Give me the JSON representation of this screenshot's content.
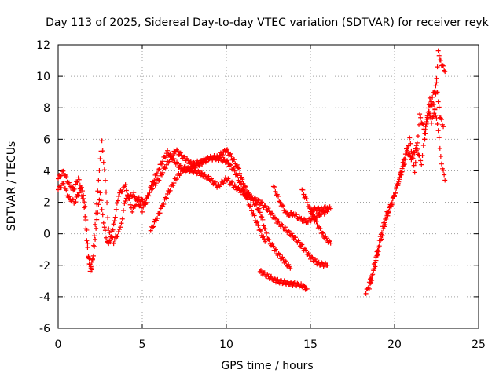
{
  "chart_data": {
    "type": "scatter",
    "title": "Day 113 of 2025, Sidereal Day-to-day VTEC variation (SDTVAR) for receiver reyk",
    "xlabel": "GPS time / hours",
    "ylabel": "SDTVAR / TECUs",
    "xlim": [
      0,
      25
    ],
    "ylim": [
      -6,
      12
    ],
    "xticks": [
      "0",
      "5",
      "10",
      "15",
      "20",
      "25"
    ],
    "yticks": [
      "-6",
      "-4",
      "-2",
      "0",
      "2",
      "4",
      "6",
      "8",
      "10",
      "12"
    ],
    "grid": true,
    "marker": "+",
    "marker_color": "#ff0000",
    "series": [
      {
        "name": "trace-1",
        "x": [
          0.0,
          0.3,
          0.6,
          0.9,
          1.2,
          1.5,
          1.7,
          1.9,
          2.1,
          2.3,
          2.5,
          2.7,
          2.9,
          3.1,
          3.3,
          3.6,
          4.0,
          4.4,
          4.8,
          5.2,
          5.6,
          6.0,
          6.5,
          7.0,
          7.5,
          8.0,
          8.5,
          9.0,
          9.5,
          10.0,
          10.5,
          11.0,
          11.5,
          12.0,
          12.3
        ],
        "y": [
          3.5,
          4.0,
          3.2,
          2.8,
          3.5,
          2.5,
          -0.5,
          -2.3,
          -1.5,
          1.0,
          2.5,
          0.8,
          -0.6,
          -0.4,
          0.5,
          2.5,
          3.0,
          1.5,
          2.2,
          2.0,
          3.2,
          4.2,
          5.2,
          4.5,
          4.0,
          4.2,
          4.5,
          4.8,
          4.8,
          4.6,
          4.0,
          2.8,
          1.5,
          0.2,
          -0.5
        ]
      },
      {
        "name": "trace-2",
        "x": [
          0.0,
          0.3,
          0.6,
          1.0,
          1.3,
          1.6,
          1.8,
          2.0,
          2.2,
          2.4,
          2.6,
          2.8,
          3.0,
          3.3,
          3.7,
          4.0,
          4.5,
          5.0,
          5.5,
          6.0,
          6.5,
          7.0,
          7.5,
          8.0,
          8.5,
          9.0,
          9.5,
          10.0,
          10.3,
          10.7,
          11.0,
          11.5,
          12.0,
          12.5,
          13.0,
          13.5,
          13.8
        ],
        "y": [
          2.8,
          3.2,
          2.3,
          2.0,
          2.8,
          1.8,
          -1.5,
          -2.2,
          0.5,
          3.5,
          5.8,
          3.5,
          0.2,
          -0.5,
          0.3,
          2.2,
          2.5,
          1.5,
          2.8,
          3.5,
          4.5,
          5.3,
          4.8,
          4.4,
          4.6,
          4.8,
          4.9,
          5.3,
          4.9,
          4.2,
          3.2,
          2.2,
          1.4,
          -0.4,
          -1.2,
          -1.8,
          -2.2
        ]
      },
      {
        "name": "trace-3",
        "x": [
          5.5,
          6.0,
          6.5,
          7.0,
          7.5,
          8.0,
          8.5,
          9.0,
          9.5,
          10.0,
          10.5,
          11.0,
          11.5,
          12.0,
          12.5,
          13.0,
          13.5,
          14.0,
          14.5,
          15.0,
          15.5,
          16.0
        ],
        "y": [
          0.2,
          1.3,
          2.5,
          3.5,
          4.2,
          4.0,
          3.8,
          3.5,
          3.0,
          3.5,
          3.0,
          2.6,
          2.3,
          2.0,
          1.5,
          0.8,
          0.3,
          -0.2,
          -0.8,
          -1.5,
          -1.9,
          -2.0
        ]
      },
      {
        "name": "trace-4",
        "x": [
          12.0,
          12.5,
          13.0,
          13.5,
          14.0,
          14.5,
          14.8
        ],
        "y": [
          -2.4,
          -2.7,
          -3.0,
          -3.1,
          -3.2,
          -3.3,
          -3.5
        ]
      },
      {
        "name": "trace-5",
        "x": [
          12.8,
          13.2,
          13.6,
          14.0,
          14.4,
          14.8,
          15.2,
          15.6,
          16.0
        ],
        "y": [
          3.0,
          2.0,
          1.2,
          1.3,
          0.9,
          0.8,
          1.0,
          1.3,
          1.4
        ]
      },
      {
        "name": "trace-6",
        "x": [
          14.5,
          14.8,
          15.1,
          15.4,
          15.7,
          16.0,
          16.2
        ],
        "y": [
          2.8,
          2.0,
          1.2,
          0.6,
          0.0,
          -0.4,
          -0.6
        ]
      },
      {
        "name": "trace-7",
        "x": [
          15.0,
          15.3,
          15.6,
          16.0,
          16.2
        ],
        "y": [
          1.4,
          1.6,
          1.5,
          1.7,
          1.6
        ]
      },
      {
        "name": "trace-8",
        "x": [
          18.3,
          18.6,
          18.9,
          19.2,
          19.5,
          19.8,
          20.1,
          20.4,
          20.7,
          21.0,
          21.3,
          21.6,
          21.9,
          22.2,
          22.5,
          22.7,
          22.9
        ],
        "y": [
          -3.8,
          -2.8,
          -1.5,
          0.0,
          1.2,
          1.8,
          2.8,
          4.0,
          5.3,
          4.8,
          5.5,
          4.5,
          7.0,
          8.5,
          9.5,
          7.5,
          6.8
        ]
      },
      {
        "name": "trace-9",
        "x": [
          18.5,
          18.8,
          19.1,
          19.4,
          19.7,
          20.0,
          20.3,
          20.6,
          20.9,
          21.2,
          21.5,
          21.8,
          22.1,
          22.4,
          22.6,
          22.8,
          23.0
        ],
        "y": [
          -3.5,
          -2.2,
          -0.8,
          0.5,
          1.6,
          2.5,
          3.5,
          4.5,
          6.0,
          4.0,
          7.5,
          6.5,
          8.5,
          8.0,
          11.5,
          10.8,
          10.3
        ]
      },
      {
        "name": "trace-10",
        "x": [
          21.8,
          22.0,
          22.2,
          22.4,
          22.6,
          22.8,
          23.0
        ],
        "y": [
          6.0,
          8.0,
          7.0,
          8.0,
          6.5,
          4.5,
          3.4
        ]
      }
    ]
  }
}
